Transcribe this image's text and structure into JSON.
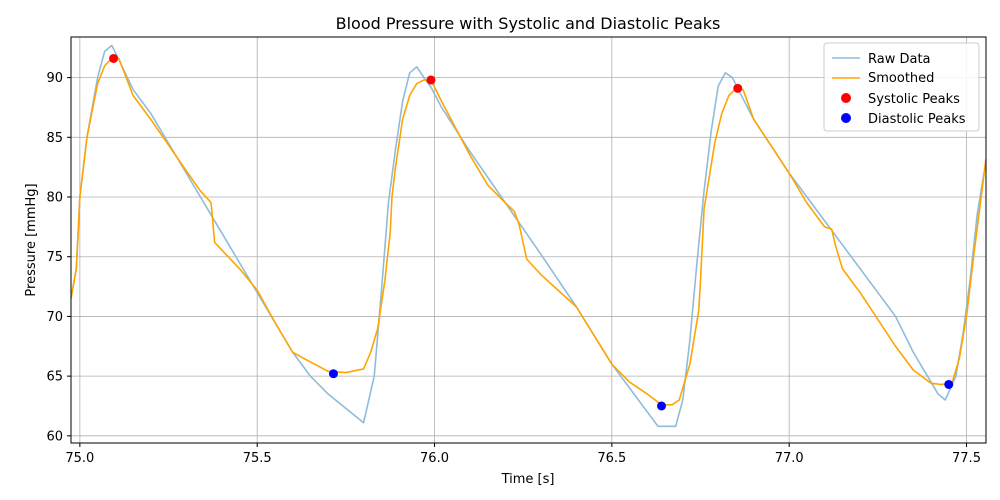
{
  "chart_data": {
    "type": "line",
    "title": "Blood Pressure with Systolic and Diastolic Peaks",
    "xlabel": "Time [s]",
    "ylabel": "Pressure [mmHg]",
    "xlim": [
      74.975,
      77.555
    ],
    "ylim": [
      59.4,
      93.4
    ],
    "xticks": [
      75.0,
      75.5,
      76.0,
      76.5,
      77.0,
      77.5
    ],
    "xtick_labels": [
      "75.0",
      "75.5",
      "76.0",
      "76.5",
      "77.0",
      "77.5"
    ],
    "yticks": [
      60,
      65,
      70,
      75,
      80,
      85,
      90
    ],
    "ytick_labels": [
      "60",
      "65",
      "70",
      "75",
      "80",
      "85",
      "90"
    ],
    "grid": true,
    "legend_position": "top-right",
    "series": [
      {
        "name": "Raw Data",
        "kind": "line",
        "color": "#8fbcdb",
        "x": [
          74.975,
          74.99,
          75.0,
          75.02,
          75.05,
          75.07,
          75.09,
          75.11,
          75.15,
          75.2,
          75.3,
          75.4,
          75.5,
          75.6,
          75.65,
          75.7,
          75.75,
          75.8,
          75.83,
          75.85,
          75.87,
          75.89,
          75.91,
          75.93,
          75.95,
          75.97,
          75.99,
          76.02,
          76.1,
          76.2,
          76.3,
          76.4,
          76.5,
          76.6,
          76.63,
          76.68,
          76.7,
          76.72,
          76.74,
          76.76,
          76.78,
          76.8,
          76.82,
          76.84,
          76.86,
          76.9,
          77.0,
          77.1,
          77.2,
          77.3,
          77.35,
          77.42,
          77.44,
          77.47,
          77.49,
          77.51,
          77.53,
          77.555
        ],
        "y": [
          71.5,
          74.0,
          80.0,
          85.0,
          90.0,
          92.2,
          92.7,
          91.5,
          89.0,
          87.0,
          82.0,
          77.0,
          72.0,
          67.0,
          65.0,
          63.5,
          62.3,
          61.1,
          65.0,
          72.0,
          79.5,
          84.0,
          88.0,
          90.4,
          90.9,
          90.0,
          89.2,
          87.5,
          83.8,
          79.5,
          75.2,
          70.8,
          66.0,
          62.0,
          60.8,
          60.8,
          63.0,
          68.0,
          74.5,
          80.5,
          85.5,
          89.3,
          90.4,
          90.0,
          88.8,
          86.5,
          82.0,
          78.0,
          74.0,
          70.0,
          67.0,
          63.5,
          63.0,
          65.0,
          68.5,
          73.0,
          78.5,
          83.0
        ]
      },
      {
        "name": "Smoothed",
        "kind": "line",
        "color": "#ffa500",
        "x": [
          74.975,
          74.99,
          75.0,
          75.02,
          75.05,
          75.07,
          75.09,
          75.11,
          75.15,
          75.2,
          75.3,
          75.34,
          75.365,
          75.37,
          75.38,
          75.45,
          75.5,
          75.55,
          75.6,
          75.63,
          75.7,
          75.75,
          75.8,
          75.82,
          75.84,
          75.86,
          75.875,
          75.88,
          75.89,
          75.91,
          75.93,
          75.95,
          75.97,
          75.99,
          76.02,
          76.1,
          76.15,
          76.2,
          76.225,
          76.235,
          76.24,
          76.26,
          76.3,
          76.4,
          76.5,
          76.55,
          76.6,
          76.64,
          76.67,
          76.69,
          76.72,
          76.745,
          76.75,
          76.76,
          76.79,
          76.81,
          76.83,
          76.85,
          76.87,
          76.9,
          77.0,
          77.05,
          77.1,
          77.12,
          77.13,
          77.15,
          77.2,
          77.3,
          77.35,
          77.4,
          77.43,
          77.46,
          77.48,
          77.5,
          77.52,
          77.555
        ],
        "y": [
          71.5,
          74.0,
          80.0,
          85.0,
          89.5,
          91.0,
          91.6,
          91.6,
          88.5,
          86.5,
          82.2,
          80.5,
          79.7,
          79.5,
          76.2,
          74.0,
          72.2,
          69.5,
          67.0,
          66.5,
          65.4,
          65.3,
          65.6,
          67.0,
          69.0,
          73.0,
          77.0,
          80.0,
          82.5,
          86.5,
          88.5,
          89.5,
          89.8,
          89.8,
          88.0,
          83.5,
          81.0,
          79.5,
          78.8,
          78.0,
          77.5,
          74.8,
          73.5,
          70.8,
          66.0,
          64.5,
          63.5,
          62.6,
          62.6,
          63.0,
          66.0,
          70.5,
          73.0,
          79.0,
          84.5,
          87.0,
          88.5,
          89.1,
          89.0,
          86.5,
          82.0,
          79.5,
          77.5,
          77.3,
          76.0,
          74.0,
          72.0,
          67.5,
          65.5,
          64.4,
          64.3,
          64.5,
          66.5,
          70.0,
          75.0,
          83.2
        ]
      },
      {
        "name": "Systolic Peaks",
        "kind": "scatter",
        "color": "#ff0000",
        "x": [
          75.095,
          75.99,
          76.855
        ],
        "y": [
          91.6,
          89.8,
          89.1
        ]
      },
      {
        "name": "Diastolic Peaks",
        "kind": "scatter",
        "color": "#0000ff",
        "x": [
          75.715,
          76.64,
          77.45
        ],
        "y": [
          65.2,
          62.5,
          64.3
        ]
      }
    ]
  }
}
